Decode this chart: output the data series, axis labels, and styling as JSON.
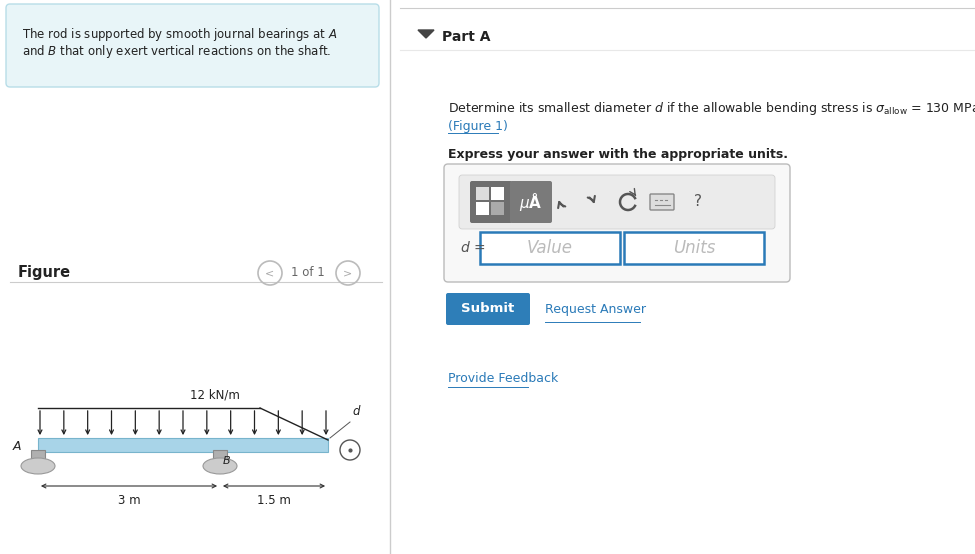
{
  "bg_color": "#ffffff",
  "left_panel_bg": "#e8f5f8",
  "left_panel_border": "#b8dde8",
  "divider_color": "#cccccc",
  "part_a_label": "Part A",
  "nav_text": "1 of 1",
  "load_label": "12 kN/m",
  "dist_3m": "3 m",
  "dist_15m": "1.5 m",
  "label_A": "A",
  "label_B": "B",
  "beam_color": "#a8d4e8",
  "beam_stroke": "#78b4cc",
  "bearing_color": "#cccccc",
  "bearing_border": "#999999",
  "bracket_color": "#b0b0b0",
  "bracket_border": "#888888",
  "submit_bg": "#2e7eb8",
  "submit_text": "Submit",
  "request_text": "Request Answer",
  "feedback_text": "Provide Feedback",
  "link_color": "#2a7ab8",
  "toolbar_bg": "#e8e8e8",
  "icon_bg": "#777777",
  "icon_bg2": "#888888",
  "text_dark": "#222222",
  "text_mid": "#444444",
  "text_light": "#999999"
}
